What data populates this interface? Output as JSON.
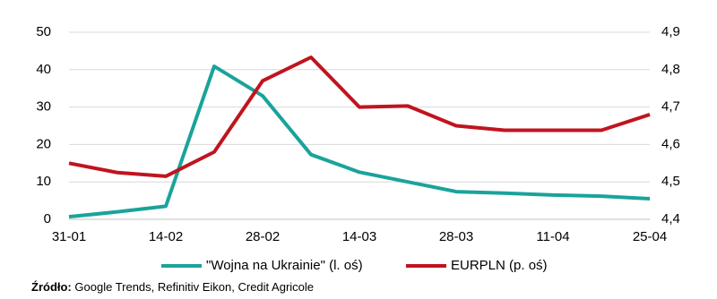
{
  "chart_data": {
    "type": "line",
    "categories": [
      "31-01",
      null,
      "14-02",
      null,
      "28-02",
      null,
      "14-03",
      null,
      "28-03",
      null,
      "11-04",
      null,
      "25-04"
    ],
    "series": [
      {
        "name": "\"Wojna na Ukrainie\" (l. oś)",
        "color": "#1aa39a",
        "values": [
          0.7,
          2,
          3.5,
          40.9,
          33,
          17.3,
          12.6,
          10,
          7.4,
          7,
          6.5,
          6.2,
          5.5
        ]
      },
      {
        "name": "EURPLN (p. oś)",
        "color": "#c0141f",
        "axis": "y2",
        "values": [
          4.55,
          4.525,
          4.515,
          4.58,
          4.77,
          4.833,
          4.7,
          4.703,
          4.65,
          4.638,
          4.638,
          4.638,
          4.68
        ]
      }
    ],
    "ylim": [
      0,
      50
    ],
    "yticks": [
      0,
      10,
      20,
      30,
      40,
      50
    ],
    "y2lim": [
      4.4,
      4.9
    ],
    "y2ticks": [
      {
        "value": 4.4,
        "label": "4,4"
      },
      {
        "value": 4.5,
        "label": "4,5"
      },
      {
        "value": 4.6,
        "label": "4,6"
      },
      {
        "value": 4.7,
        "label": "4,7"
      },
      {
        "value": 4.8,
        "label": "4,8"
      },
      {
        "value": 4.9,
        "label": "4,9"
      }
    ],
    "grid": true,
    "source_label": "Źródło:",
    "source_text": "Google Trends, Refinitiv Eikon, Credit Agricole"
  }
}
